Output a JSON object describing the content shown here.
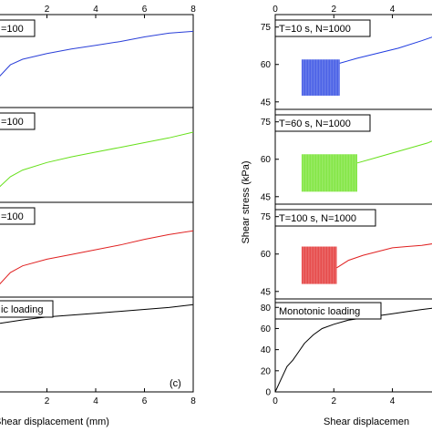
{
  "chart_data": [
    {
      "type": "line",
      "layout": "stacked-panels",
      "xlabel": "Shear displacement (mm)",
      "xlim": [
        0,
        8
      ],
      "xticks": [
        2,
        4,
        6,
        8
      ],
      "panel_label": "(c)",
      "panels": [
        {
          "label": "=100",
          "color": "#2a3fd8",
          "series": [
            {
              "x": [
                0,
                0.5,
                1,
                2,
                3,
                4,
                5,
                6,
                7,
                8
              ],
              "y": [
                0.32,
                0.46,
                0.52,
                0.58,
                0.63,
                0.67,
                0.71,
                0.76,
                0.8,
                0.82
              ]
            }
          ]
        },
        {
          "label": "=100",
          "color": "#66e01a",
          "series": [
            {
              "x": [
                0,
                0.5,
                1,
                2,
                3,
                4,
                5,
                6,
                7,
                8
              ],
              "y": [
                0.15,
                0.27,
                0.34,
                0.42,
                0.48,
                0.53,
                0.58,
                0.63,
                0.68,
                0.74
              ]
            }
          ]
        },
        {
          "label": "=100",
          "color": "#e02020",
          "series": [
            {
              "x": [
                0,
                0.5,
                1,
                2,
                3,
                4,
                5,
                6,
                7,
                8
              ],
              "y": [
                0.12,
                0.26,
                0.33,
                0.4,
                0.45,
                0.5,
                0.55,
                0.61,
                0.66,
                0.7
              ]
            }
          ]
        },
        {
          "label": "ic loading",
          "color": "#000000",
          "series": [
            {
              "x": [
                0,
                1,
                2,
                3,
                4,
                5,
                6,
                7,
                8
              ],
              "y": [
                0.72,
                0.76,
                0.79,
                0.81,
                0.83,
                0.85,
                0.87,
                0.89,
                0.92
              ]
            }
          ]
        }
      ]
    },
    {
      "type": "line",
      "layout": "stacked-panels",
      "xlabel": "Shear displacemen",
      "ylabel": "Shear stress (kPa)",
      "xlim": [
        0,
        5.6
      ],
      "xticks": [
        0,
        2,
        4
      ],
      "panels": [
        {
          "label": "T=10 s, N=1000",
          "color": "#1f3be0",
          "ylim": [
            42,
            80
          ],
          "yticks": [
            45,
            60,
            75
          ],
          "band": {
            "x": [
              0.9,
              2.2
            ],
            "y": [
              47.5,
              62
            ]
          },
          "series": [
            {
              "x": [
                2.2,
                2.8,
                3.5,
                4.2,
                5.0,
                5.6
              ],
              "y": [
                60.5,
                62.5,
                64.5,
                66.5,
                69.5,
                72
              ]
            }
          ]
        },
        {
          "label": "T=60 s, N=1000",
          "color": "#66e01a",
          "ylim": [
            42,
            80
          ],
          "yticks": [
            45,
            60,
            75
          ],
          "band": {
            "x": [
              0.9,
              2.8
            ],
            "y": [
              47,
              62
            ]
          },
          "series": [
            {
              "x": [
                2.8,
                3.4,
                4.0,
                4.6,
                5.2,
                5.6
              ],
              "y": [
                58.5,
                60.5,
                62.5,
                64.5,
                66.5,
                68.5
              ]
            }
          ]
        },
        {
          "label": "T=100 s, N=1000",
          "color": "#e02020",
          "ylim": [
            42,
            80
          ],
          "yticks": [
            45,
            60,
            75
          ],
          "band": {
            "x": [
              0.9,
              2.1
            ],
            "y": [
              48,
              63
            ]
          },
          "series": [
            {
              "x": [
                2.1,
                2.5,
                3.0,
                3.5,
                4.0,
                4.5,
                5.0,
                5.6
              ],
              "y": [
                54.5,
                57.5,
                59.5,
                61,
                62.5,
                63,
                63.5,
                64.5
              ]
            }
          ]
        },
        {
          "label": "Monotonic loading",
          "color": "#000000",
          "ylim": [
            0,
            88
          ],
          "yticks": [
            0,
            20,
            40,
            60,
            80
          ],
          "series": [
            {
              "x": [
                0,
                0.2,
                0.4,
                0.6,
                0.8,
                1.0,
                1.3,
                1.6,
                2.0,
                2.5,
                3.0,
                3.5,
                4.0,
                4.5,
                5.0,
                5.6
              ],
              "y": [
                0,
                12,
                24,
                30,
                38,
                46,
                54,
                60,
                64,
                68,
                70,
                72,
                74,
                76,
                78,
                80
              ]
            }
          ]
        }
      ]
    }
  ]
}
